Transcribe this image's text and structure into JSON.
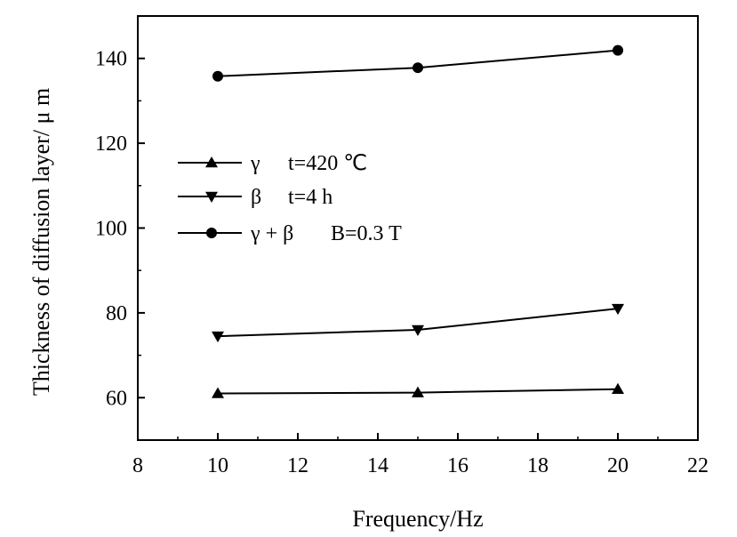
{
  "chart_data": {
    "type": "line",
    "xlabel": "Frequency/Hz",
    "ylabel": "Thickness of diffusion layer/ μ m",
    "xlim": [
      8,
      22
    ],
    "ylim": [
      50,
      150
    ],
    "xticks": [
      8,
      10,
      12,
      14,
      16,
      18,
      20,
      22
    ],
    "yticks": [
      60,
      80,
      100,
      120,
      140
    ],
    "x": [
      10,
      15,
      20
    ],
    "series": [
      {
        "name": "γ",
        "marker": "triangle-up",
        "values": [
          61,
          61.2,
          62
        ]
      },
      {
        "name": "β",
        "marker": "triangle-down",
        "values": [
          74.5,
          76,
          81
        ]
      },
      {
        "name": "γ + β",
        "marker": "circle",
        "values": [
          135.8,
          137.8,
          141.9
        ]
      }
    ],
    "legend_conditions": [
      "t=420 ℃",
      "t=4 h",
      "B=0.3 T"
    ],
    "legend_position": "left-middle",
    "grid": false
  }
}
